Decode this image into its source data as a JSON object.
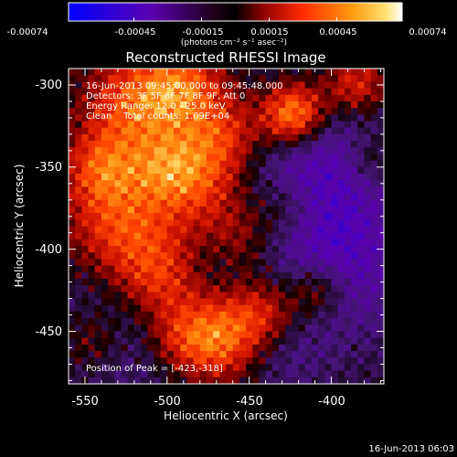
{
  "colorbar": {
    "tick_labels": [
      "-0.00074",
      "-0.00045",
      "-0.00015",
      "0.00015",
      "0.00045",
      "0.00074"
    ],
    "tick_values": [
      -0.00074,
      -0.00045,
      -0.00015,
      0.00015,
      0.00045,
      0.00074
    ],
    "range": [
      -0.00074,
      0.00074
    ],
    "unit_label": "(photons cm⁻² s⁻¹ asec⁻²)"
  },
  "chart_data": {
    "type": "heatmap",
    "title": "Reconstructed RHESSI Image",
    "xlabel": "Heliocentric X (arcsec)",
    "ylabel": "Heliocentric Y (arcsec)",
    "xlim": [
      -560,
      -368
    ],
    "ylim": [
      -482,
      -290
    ],
    "xticks": [
      -550,
      -500,
      -450,
      -400
    ],
    "xtick_labels": [
      "-550",
      "-500",
      "-450",
      "-400"
    ],
    "yticks": [
      -300,
      -350,
      -400,
      -450
    ],
    "ytick_labels": [
      "-300",
      "-350",
      "-400",
      "-450"
    ],
    "colormap": [
      "#0000ff",
      "#4400aa",
      "#3a1a6a",
      "#000000",
      "#7a0000",
      "#cc0000",
      "#ff3300",
      "#ff8800",
      "#ffcc33",
      "#ffffcc"
    ],
    "info_lines": [
      "16-Jun-2013 09:45:00.000 to 09:45:48.000",
      "Detectors: 3F 5F 6F 7F 8F 9F, Att 0",
      "Energy Range: 12.0 - 25.0 keV",
      "Clean    Total counts: 1.09E+04"
    ],
    "peak_text": "Position of Peak = [-423,-318]",
    "peak": {
      "x": -423,
      "y": -318
    }
  },
  "footer": {
    "timestamp": "16-Jun-2013 06:03"
  }
}
